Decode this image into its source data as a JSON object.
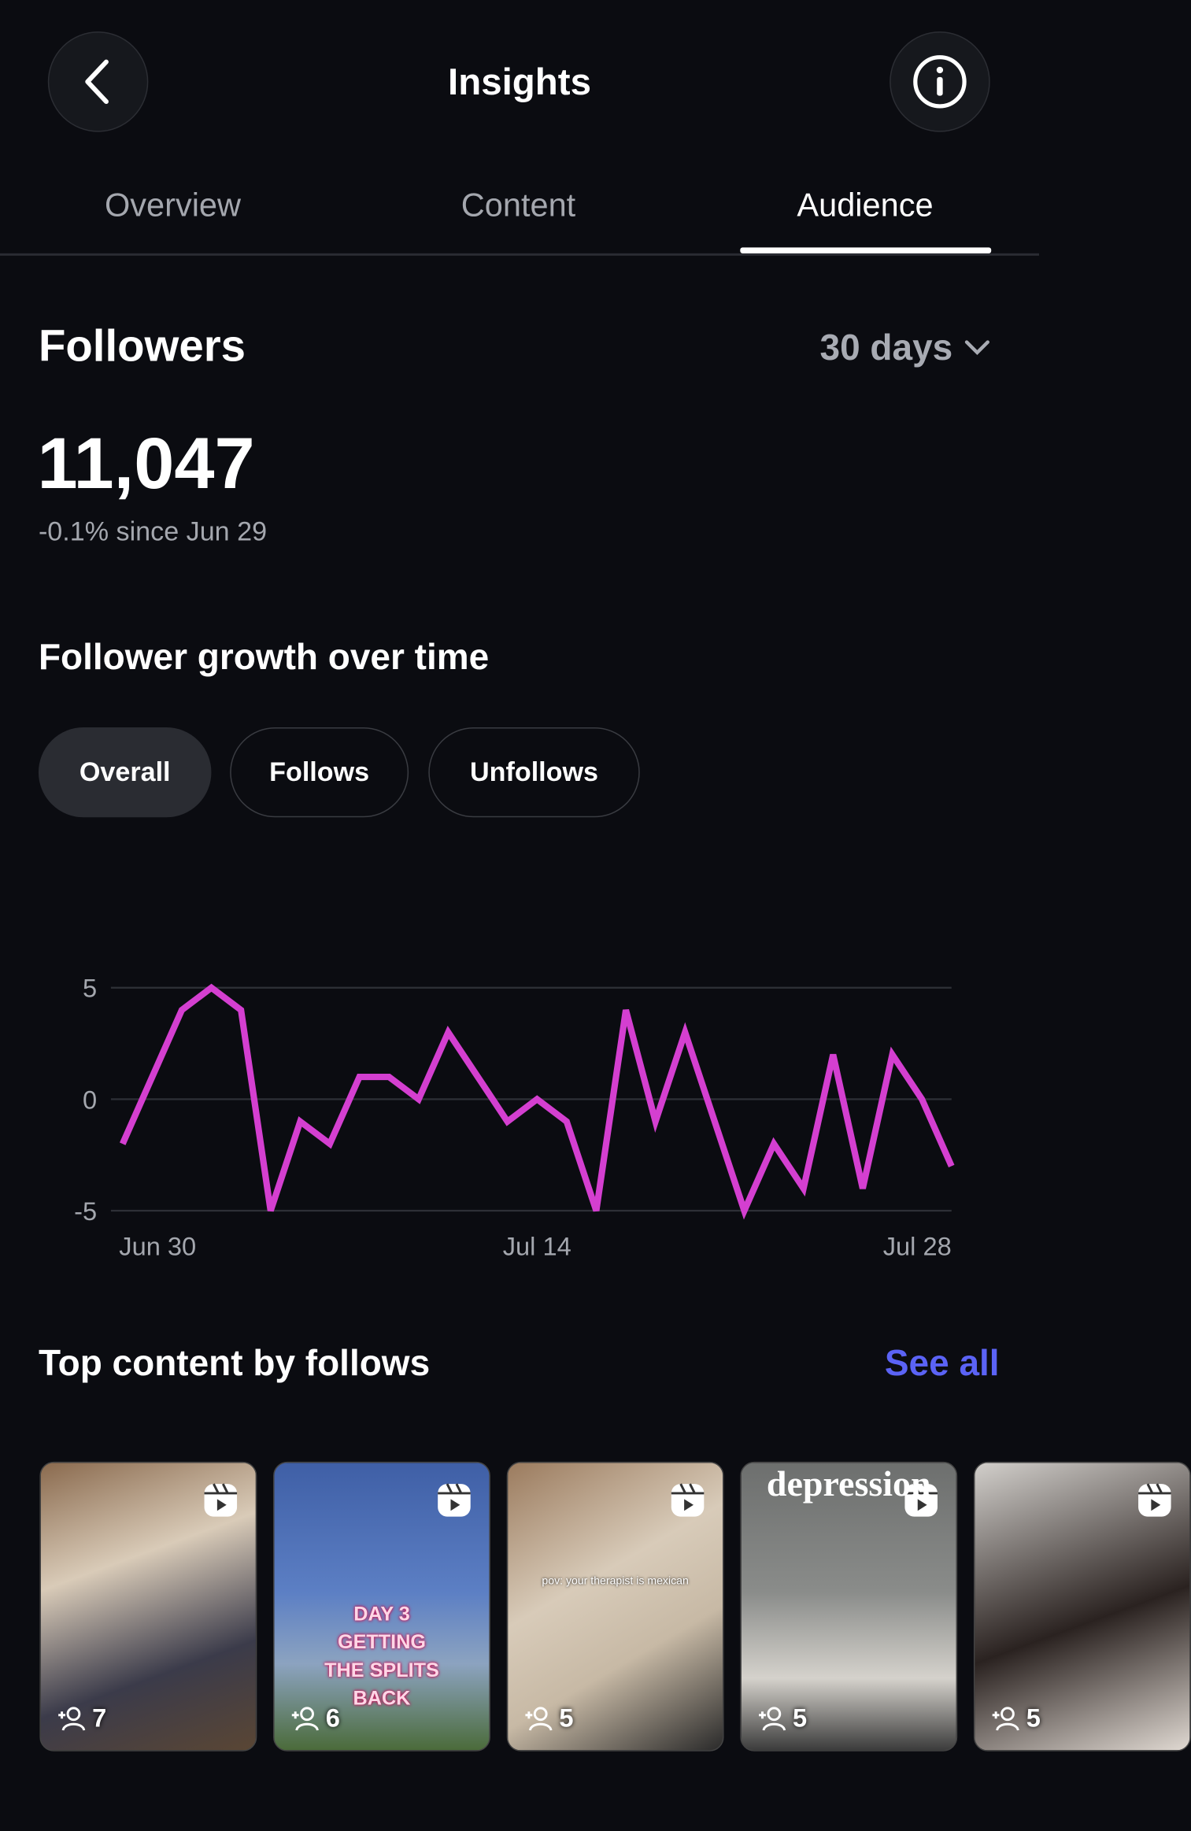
{
  "header": {
    "title": "Insights"
  },
  "tabs": [
    "Overview",
    "Content",
    "Audience"
  ],
  "followers": {
    "title": "Followers",
    "range": "30 days",
    "count": "11,047",
    "change": "-0.1% since Jun 29"
  },
  "growth": {
    "title": "Follower growth over time",
    "filters": [
      "Overall",
      "Follows",
      "Unfollows"
    ]
  },
  "chart_data": {
    "type": "line",
    "categories": [
      "Jun 30",
      null,
      null,
      null,
      null,
      null,
      null,
      null,
      null,
      null,
      null,
      null,
      null,
      null,
      "Jul 14",
      null,
      null,
      null,
      null,
      null,
      null,
      null,
      null,
      null,
      null,
      null,
      null,
      null,
      "Jul 28"
    ],
    "values": [
      -2,
      1,
      4,
      5,
      4,
      -5,
      -1,
      -2,
      1,
      1,
      0,
      3,
      1,
      -1,
      0,
      -1,
      -5,
      4,
      -1,
      3,
      -1,
      -5,
      -2,
      -4,
      2,
      -4,
      2,
      0,
      -3
    ],
    "color": "#d43fd0",
    "ylim": [
      -5,
      5
    ],
    "yticks": [
      -5,
      0,
      5
    ],
    "grid": true
  },
  "top_content": {
    "title": "Top content by follows",
    "see_all": "See all",
    "items": [
      {
        "follows": 7
      },
      {
        "follows": 6,
        "caption": [
          "DAY 3",
          "GETTING",
          "THE SPLITS",
          "BACK"
        ]
      },
      {
        "follows": 5,
        "caption": [
          "pov: your therapist is mexican"
        ]
      },
      {
        "follows": 5,
        "caption": [
          "depression"
        ]
      },
      {
        "follows": 5
      }
    ]
  }
}
